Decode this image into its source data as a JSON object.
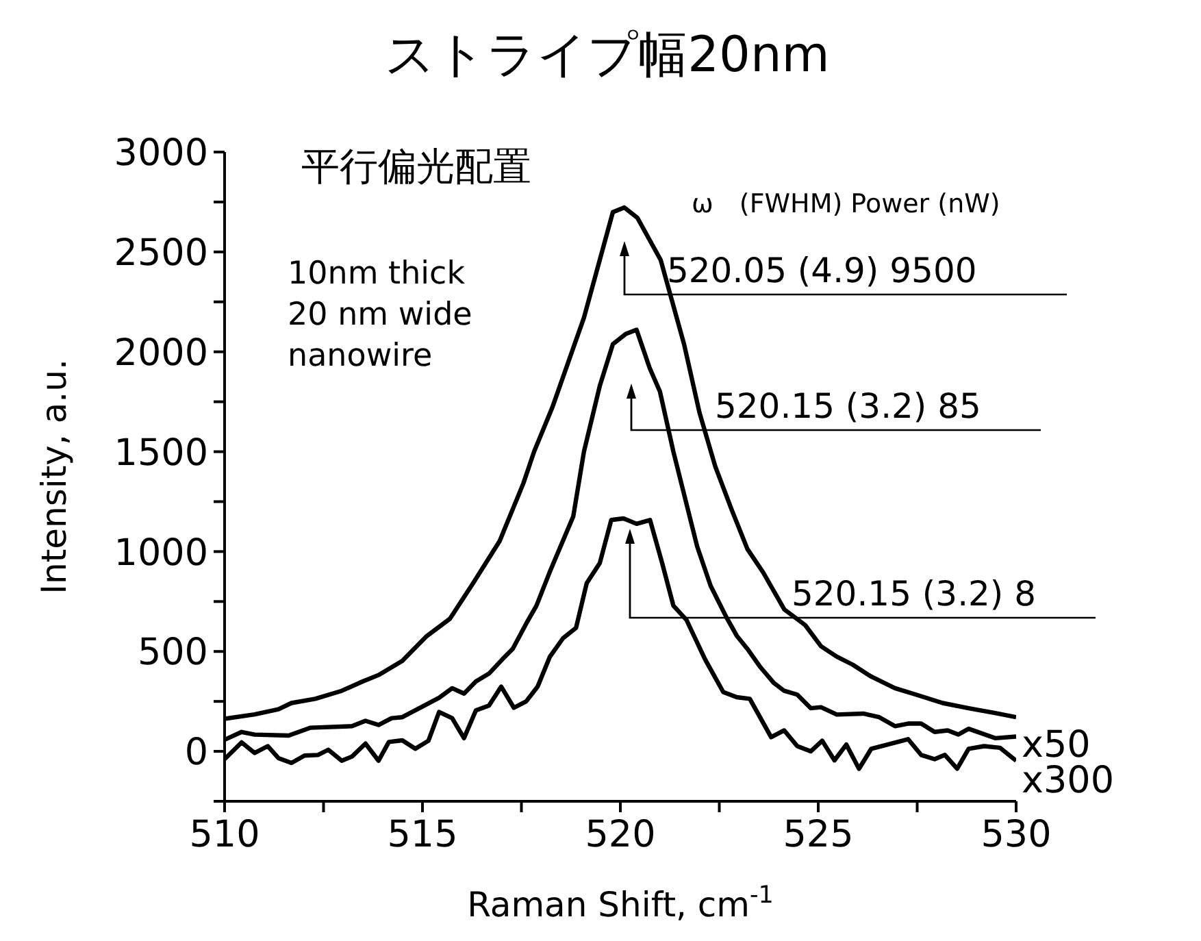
{
  "chart_data": {
    "type": "line",
    "title": "ストライプ幅20nm",
    "xlabel": "Raman Shift, cm$^{-1}$",
    "ylabel": "Intensity, a.u.",
    "xlim": [
      510,
      530
    ],
    "xticks": [
      510,
      {
        "value": 512.5,
        "label": null
      },
      515,
      {
        "value": 517.5,
        "label": null
      },
      520,
      {
        "value": 522.5,
        "label": null
      },
      525,
      {
        "value": 527.5,
        "label": null
      },
      530
    ],
    "ylim": [
      -250,
      3000
    ],
    "yticks": [
      {
        "value": -250,
        "label": null
      },
      0,
      {
        "value": 250,
        "label": null
      },
      500,
      {
        "value": 750,
        "label": null
      },
      1000,
      {
        "value": 1250,
        "label": null
      },
      1500,
      {
        "value": 1750,
        "label": null
      },
      2000,
      {
        "value": 2250,
        "label": null
      },
      2500,
      {
        "value": 2750,
        "label": null
      },
      3000
    ],
    "grid": false,
    "marker": "none",
    "line_style": "solid",
    "series": [
      {
        "color": "#000000",
        "x": [
          510,
          510.76,
          511.36,
          511.69,
          512.29,
          512.96,
          513.49,
          513.89,
          514.49,
          515.09,
          515.69,
          516.28,
          516.95,
          517.55,
          517.82,
          518.28,
          519.08,
          519.81,
          520.1,
          520.43,
          521.02,
          521.61,
          522.0,
          522.4,
          522.81,
          523.21,
          523.61,
          524.14,
          524.67,
          525.07,
          525.47,
          525.87,
          526.34,
          526.94,
          527.47,
          528.14,
          528.8,
          529.47,
          530
        ],
        "values": [
          163,
          185,
          211,
          242,
          263,
          303,
          350,
          382,
          453,
          574,
          663,
          842,
          1053,
          1342,
          1500,
          1721,
          2171,
          2699,
          2722,
          2671,
          2459,
          2038,
          1695,
          1425,
          1211,
          1013,
          895,
          711,
          632,
          526,
          474,
          434,
          374,
          316,
          284,
          242,
          216,
          192,
          171
        ]
      },
      {
        "name": "x50",
        "color": "#000000",
        "x": [
          510,
          510.43,
          510.76,
          511.62,
          512.16,
          513.22,
          513.56,
          513.89,
          514.22,
          514.49,
          515.42,
          515.75,
          516.05,
          516.35,
          516.68,
          517.02,
          517.28,
          517.62,
          517.88,
          518.22,
          518.81,
          519.08,
          519.48,
          519.81,
          520.14,
          520.41,
          520.74,
          521.0,
          521.34,
          521.94,
          522.28,
          522.68,
          522.94,
          523.21,
          523.54,
          523.88,
          524.14,
          524.47,
          524.81,
          525.07,
          525.47,
          526.14,
          526.54,
          526.94,
          527.27,
          527.6,
          527.94,
          528.27,
          528.54,
          528.8,
          529.47,
          530
        ],
        "values": [
          58,
          97,
          84,
          79,
          118,
          126,
          153,
          132,
          166,
          171,
          268,
          316,
          289,
          350,
          389,
          461,
          513,
          639,
          729,
          900,
          1176,
          1500,
          1829,
          2038,
          2090,
          2110,
          1919,
          1801,
          1500,
          1026,
          829,
          671,
          579,
          513,
          421,
          342,
          303,
          284,
          216,
          221,
          184,
          189,
          171,
          126,
          139,
          139,
          97,
          105,
          84,
          113,
          66,
          74
        ]
      },
      {
        "name": "x300",
        "color": "#000000",
        "x": [
          510,
          510.43,
          510.76,
          511.09,
          511.36,
          511.69,
          512.02,
          512.36,
          512.62,
          512.96,
          513.22,
          513.56,
          513.89,
          514.15,
          514.49,
          514.82,
          515.15,
          515.42,
          515.75,
          516.05,
          516.35,
          516.68,
          516.99,
          517.31,
          517.62,
          517.91,
          518.22,
          518.55,
          518.88,
          519.15,
          519.48,
          519.77,
          520.08,
          520.41,
          520.75,
          521.05,
          521.34,
          521.67,
          522.14,
          522.6,
          522.94,
          523.27,
          523.81,
          524.14,
          524.47,
          524.81,
          525.1,
          525.41,
          525.71,
          526.03,
          526.34,
          527.27,
          527.6,
          527.94,
          528.2,
          528.51,
          528.8,
          529.19,
          529.59,
          530
        ],
        "values": [
          -39,
          45,
          -8,
          26,
          -34,
          -58,
          -21,
          -18,
          8,
          -47,
          -26,
          39,
          -47,
          47,
          55,
          13,
          53,
          197,
          166,
          66,
          205,
          229,
          324,
          218,
          250,
          324,
          474,
          566,
          618,
          842,
          942,
          1158,
          1166,
          1139,
          1158,
          947,
          729,
          658,
          461,
          297,
          271,
          263,
          71,
          105,
          26,
          0,
          53,
          -45,
          34,
          -87,
          13,
          61,
          -18,
          -39,
          -18,
          -87,
          13,
          26,
          18,
          -47
        ]
      }
    ],
    "annotations": [
      "平行偏光配置",
      "10nm thick\n20 nm wide\nnanowire",
      "ω　(FWHM) Power (nW)",
      "520.05 (4.9) 9500",
      "520.15 (3.2) 85",
      "520.15 (3.2) 8"
    ]
  }
}
